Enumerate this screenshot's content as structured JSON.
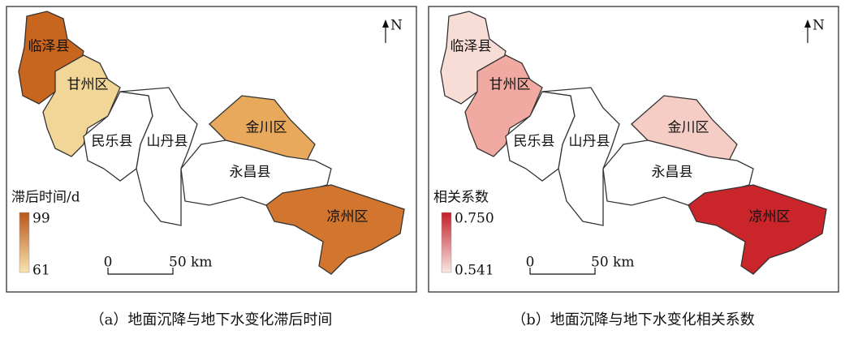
{
  "panels": [
    {
      "caption": "（a）地面沉降与地下水变化滞后时间",
      "districts": [
        "临泽县",
        "甘州区",
        "民乐县",
        "山丹县",
        "金川区",
        "永昌县",
        "凉州区"
      ],
      "north": "N",
      "legend": {
        "title": "滞后时间/d",
        "max": "99",
        "min": "61"
      },
      "scale": {
        "start": "0",
        "end": "50 km"
      }
    },
    {
      "caption": "（b）地面沉降与地下水变化相关系数",
      "districts": [
        "临泽县",
        "甘州区",
        "民乐县",
        "山丹县",
        "金川区",
        "永昌县",
        "凉州区"
      ],
      "north": "N",
      "legend": {
        "title": "相关系数",
        "max": "0.750",
        "min": "0.541"
      },
      "scale": {
        "start": "0",
        "end": "50 km"
      }
    }
  ]
}
